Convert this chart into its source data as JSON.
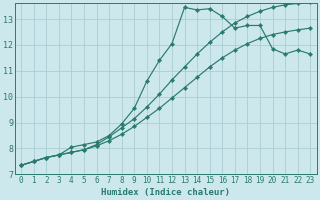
{
  "title": "",
  "xlabel": "Humidex (Indice chaleur)",
  "background_color": "#cce8ec",
  "grid_color": "#aacdd4",
  "line_color": "#2a7a70",
  "xlim": [
    -0.5,
    23.5
  ],
  "ylim": [
    7,
    13.6
  ],
  "yticks": [
    7,
    8,
    9,
    10,
    11,
    12,
    13
  ],
  "xticks": [
    0,
    1,
    2,
    3,
    4,
    5,
    6,
    7,
    8,
    9,
    10,
    11,
    12,
    13,
    14,
    15,
    16,
    17,
    18,
    19,
    20,
    21,
    22,
    23
  ],
  "series": [
    {
      "x": [
        0,
        1,
        2,
        3,
        4,
        5,
        6,
        7,
        8,
        9,
        10,
        11,
        12,
        13,
        14,
        15,
        16,
        17,
        18,
        19,
        20,
        21,
        22,
        23
      ],
      "y": [
        7.35,
        7.5,
        7.65,
        7.75,
        8.05,
        8.15,
        8.25,
        8.5,
        8.95,
        9.55,
        10.6,
        11.4,
        12.05,
        13.45,
        13.35,
        13.4,
        13.1,
        12.65,
        12.75,
        12.75,
        11.85,
        11.65,
        11.8,
        11.65
      ]
    },
    {
      "x": [
        0,
        1,
        2,
        3,
        4,
        5,
        6,
        7,
        8,
        9,
        10,
        11,
        12,
        13,
        14,
        15,
        16,
        17,
        18,
        19,
        20,
        21,
        22,
        23
      ],
      "y": [
        7.35,
        7.5,
        7.65,
        7.75,
        7.85,
        7.95,
        8.15,
        8.45,
        8.8,
        9.15,
        9.6,
        10.1,
        10.65,
        11.15,
        11.65,
        12.1,
        12.5,
        12.85,
        13.1,
        13.3,
        13.45,
        13.55,
        13.6,
        13.65
      ]
    },
    {
      "x": [
        0,
        1,
        2,
        3,
        4,
        5,
        6,
        7,
        8,
        9,
        10,
        11,
        12,
        13,
        14,
        15,
        16,
        17,
        18,
        19,
        20,
        21,
        22,
        23
      ],
      "y": [
        7.35,
        7.5,
        7.65,
        7.75,
        7.85,
        7.95,
        8.1,
        8.3,
        8.55,
        8.85,
        9.2,
        9.55,
        9.95,
        10.35,
        10.75,
        11.15,
        11.5,
        11.8,
        12.05,
        12.25,
        12.4,
        12.5,
        12.58,
        12.65
      ]
    }
  ],
  "xlabel_fontsize": 6.5,
  "tick_fontsize": 5.5,
  "marker_size": 2.2,
  "line_width": 0.85
}
